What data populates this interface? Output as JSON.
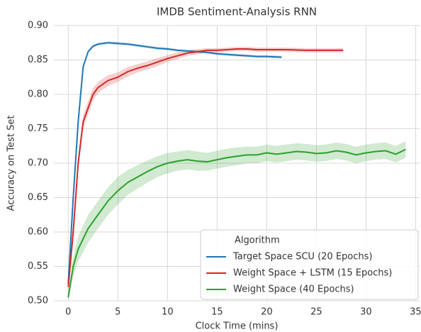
{
  "chart_data": {
    "type": "line",
    "title": "IMDB Sentiment-Analysis RNN",
    "xlabel": "Clock Time (mins)",
    "ylabel": "Accuracy on Test Set",
    "xlim": [
      -1.45,
      35.4
    ],
    "ylim": [
      0.5,
      0.9
    ],
    "xticks": [
      0,
      5,
      10,
      15,
      20,
      25,
      30,
      35
    ],
    "yticks": [
      {
        "value": 0.5,
        "label": "0.50"
      },
      {
        "value": 0.55,
        "label": "0.55"
      },
      {
        "value": 0.6,
        "label": "0.60"
      },
      {
        "value": 0.65,
        "label": "0.65"
      },
      {
        "value": 0.7,
        "label": "0.70"
      },
      {
        "value": 0.75,
        "label": "0.75"
      },
      {
        "value": 0.8,
        "label": "0.80"
      },
      {
        "value": 0.85,
        "label": "0.85"
      },
      {
        "value": 0.9,
        "label": "0.90"
      }
    ],
    "grid": true,
    "legend_title": "Algorithm",
    "legend_position": "lower right",
    "series": [
      {
        "name": "Target Space SCU (20 Epochs)",
        "color": "#1f77b4",
        "x": [
          0,
          0.5,
          1,
          1.5,
          2,
          2.5,
          3,
          4,
          5,
          6,
          7,
          8,
          9,
          10,
          11,
          12,
          13,
          14,
          15,
          16,
          17,
          18,
          19,
          20,
          21.5
        ],
        "values": [
          0.525,
          0.65,
          0.76,
          0.84,
          0.862,
          0.87,
          0.873,
          0.875,
          0.874,
          0.873,
          0.871,
          0.869,
          0.867,
          0.866,
          0.864,
          0.863,
          0.862,
          0.861,
          0.859,
          0.858,
          0.857,
          0.856,
          0.855,
          0.855,
          0.854
        ],
        "band": [
          0.004,
          0.004,
          0.004,
          0.003,
          0.002,
          0.002,
          0.002,
          0.002,
          0.002,
          0.002,
          0.002,
          0.002,
          0.002,
          0.002,
          0.002,
          0.002,
          0.002,
          0.002,
          0.002,
          0.002,
          0.002,
          0.002,
          0.002,
          0.002,
          0.002
        ]
      },
      {
        "name": "Weight Space + LSTM (15 Epochs)",
        "color": "#d62728",
        "x": [
          0,
          0.5,
          1,
          1.5,
          2,
          2.5,
          3,
          4,
          5,
          6,
          7,
          8,
          9,
          10,
          11,
          12,
          13,
          14,
          15,
          16,
          17,
          18,
          19,
          20,
          22,
          24,
          26,
          27.7
        ],
        "values": [
          0.52,
          0.6,
          0.7,
          0.76,
          0.78,
          0.8,
          0.81,
          0.82,
          0.825,
          0.833,
          0.838,
          0.842,
          0.847,
          0.852,
          0.856,
          0.86,
          0.862,
          0.864,
          0.864,
          0.865,
          0.866,
          0.866,
          0.865,
          0.865,
          0.865,
          0.864,
          0.864,
          0.864
        ],
        "band": [
          0.008,
          0.01,
          0.01,
          0.01,
          0.01,
          0.009,
          0.008,
          0.008,
          0.007,
          0.007,
          0.006,
          0.006,
          0.006,
          0.005,
          0.005,
          0.004,
          0.004,
          0.003,
          0.003,
          0.003,
          0.003,
          0.003,
          0.003,
          0.003,
          0.003,
          0.003,
          0.003,
          0.003
        ]
      },
      {
        "name": "Weight Space (40 Epochs)",
        "color": "#2ca02c",
        "x": [
          0,
          0.5,
          1,
          2,
          3,
          4,
          5,
          6,
          7,
          8,
          9,
          10,
          11,
          12,
          13,
          14,
          15,
          16,
          17,
          18,
          19,
          20,
          21,
          22,
          23,
          24,
          25,
          26,
          27,
          28,
          29,
          30,
          31,
          32,
          33,
          34
        ],
        "values": [
          0.505,
          0.55,
          0.575,
          0.605,
          0.625,
          0.645,
          0.66,
          0.672,
          0.68,
          0.688,
          0.695,
          0.7,
          0.703,
          0.705,
          0.703,
          0.702,
          0.705,
          0.708,
          0.71,
          0.712,
          0.712,
          0.715,
          0.713,
          0.715,
          0.717,
          0.716,
          0.714,
          0.715,
          0.718,
          0.716,
          0.712,
          0.715,
          0.717,
          0.718,
          0.713,
          0.72
        ],
        "band": [
          0.005,
          0.015,
          0.018,
          0.02,
          0.02,
          0.02,
          0.02,
          0.018,
          0.017,
          0.016,
          0.015,
          0.015,
          0.014,
          0.014,
          0.014,
          0.013,
          0.013,
          0.013,
          0.013,
          0.012,
          0.012,
          0.012,
          0.012,
          0.012,
          0.012,
          0.012,
          0.012,
          0.012,
          0.012,
          0.012,
          0.012,
          0.012,
          0.012,
          0.012,
          0.012,
          0.012
        ]
      }
    ]
  }
}
